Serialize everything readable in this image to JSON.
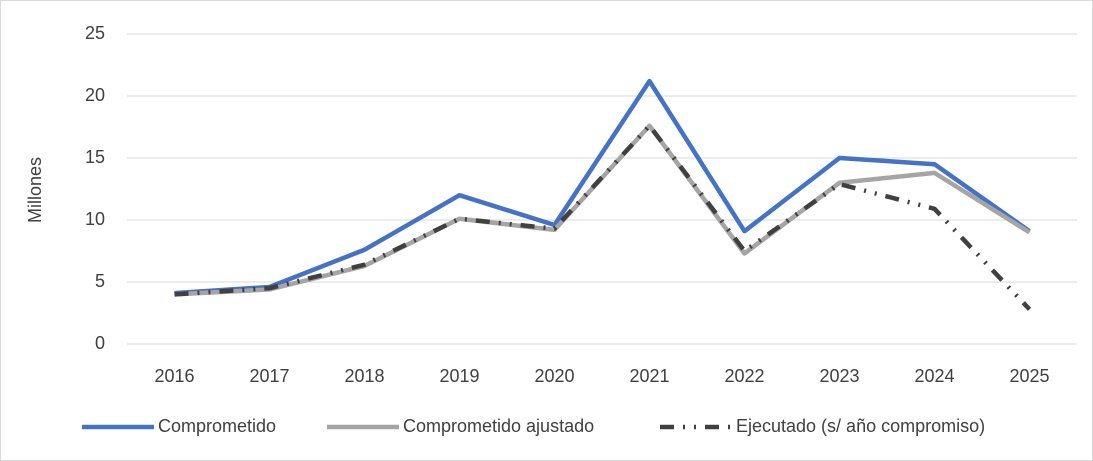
{
  "chart_data": {
    "type": "line",
    "ylabel": "Millones",
    "categories": [
      "2016",
      "2017",
      "2018",
      "2019",
      "2020",
      "2021",
      "2022",
      "2023",
      "2024",
      "2025"
    ],
    "series": [
      {
        "name": "Comprometido",
        "color": "#4472c4",
        "style": "solid",
        "values": [
          4.1,
          4.6,
          7.6,
          12.0,
          9.6,
          21.2,
          9.1,
          15.0,
          14.5,
          9.1
        ]
      },
      {
        "name": "Comprometido ajustado",
        "color": "#a5a5a5",
        "style": "solid",
        "values": [
          4.0,
          4.4,
          6.3,
          10.1,
          9.2,
          17.6,
          7.3,
          13.0,
          13.8,
          9.0
        ]
      },
      {
        "name": "Ejecutado (s/ año compromiso)",
        "color": "#404040",
        "style": "dash-dot",
        "values": [
          4.0,
          4.5,
          6.4,
          10.1,
          9.3,
          17.6,
          7.5,
          12.9,
          10.9,
          2.8
        ]
      }
    ],
    "ylim": [
      0,
      25
    ],
    "yticks": [
      0,
      5,
      10,
      15,
      20,
      25
    ],
    "grid": true,
    "legend": "bottom"
  }
}
